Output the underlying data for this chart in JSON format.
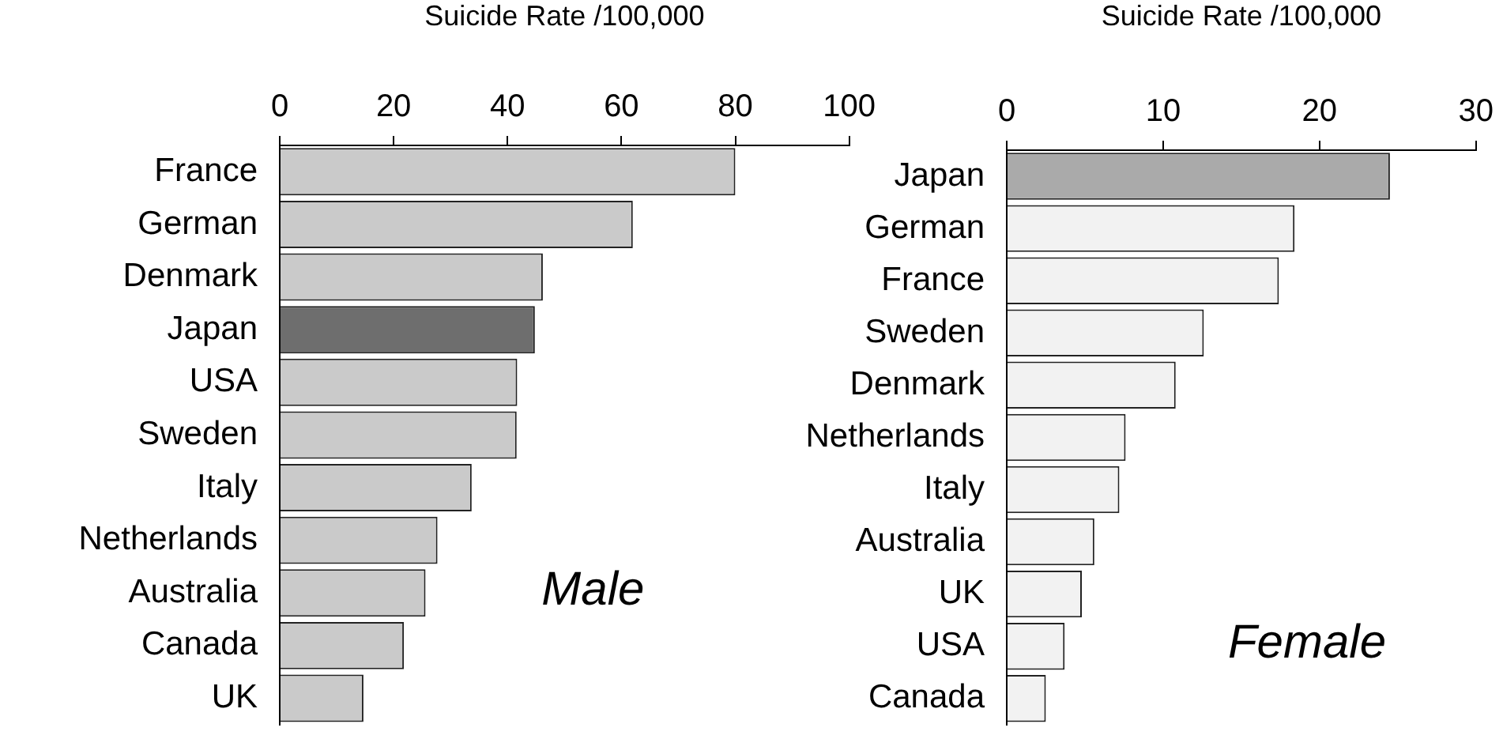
{
  "chart_data": [
    {
      "type": "bar",
      "orientation": "horizontal",
      "xlabel": "Suicide Rate /100,000",
      "categories": [
        "France",
        "German",
        "Denmark",
        "Japan",
        "USA",
        "Sweden",
        "Italy",
        "Netherlands",
        "Australia",
        "Canada",
        "UK"
      ],
      "values": [
        80,
        62,
        46.2,
        44.8,
        41.7,
        41.6,
        33.7,
        27.7,
        25.6,
        21.8,
        14.7
      ],
      "colors": [
        "#cacaca",
        "#cacaca",
        "#cacaca",
        "#6e6e6e",
        "#cacaca",
        "#cacaca",
        "#cacaca",
        "#cacaca",
        "#cacaca",
        "#cacaca",
        "#cacaca"
      ],
      "xlim": [
        0,
        100
      ],
      "xticks": [
        0,
        20,
        40,
        60,
        80,
        100
      ],
      "annotations": [
        "Male"
      ]
    },
    {
      "type": "bar",
      "orientation": "horizontal",
      "xlabel": "Suicide Rate /100,000",
      "categories": [
        "Japan",
        "German",
        "France",
        "Sweden",
        "Denmark",
        "Netherlands",
        "Italy",
        "Australia",
        "UK",
        "USA",
        "Canada"
      ],
      "values": [
        24.5,
        18.4,
        17.4,
        12.6,
        10.8,
        7.6,
        7.2,
        5.6,
        4.8,
        3.7,
        2.5
      ],
      "colors": [
        "#aaaaaa",
        "#f2f2f2",
        "#f2f2f2",
        "#f2f2f2",
        "#f2f2f2",
        "#f2f2f2",
        "#f2f2f2",
        "#f2f2f2",
        "#f2f2f2",
        "#f2f2f2",
        "#f2f2f2"
      ],
      "xlim": [
        0,
        30
      ],
      "xticks": [
        0,
        10,
        20,
        30
      ],
      "annotations": [
        "Female"
      ]
    }
  ]
}
